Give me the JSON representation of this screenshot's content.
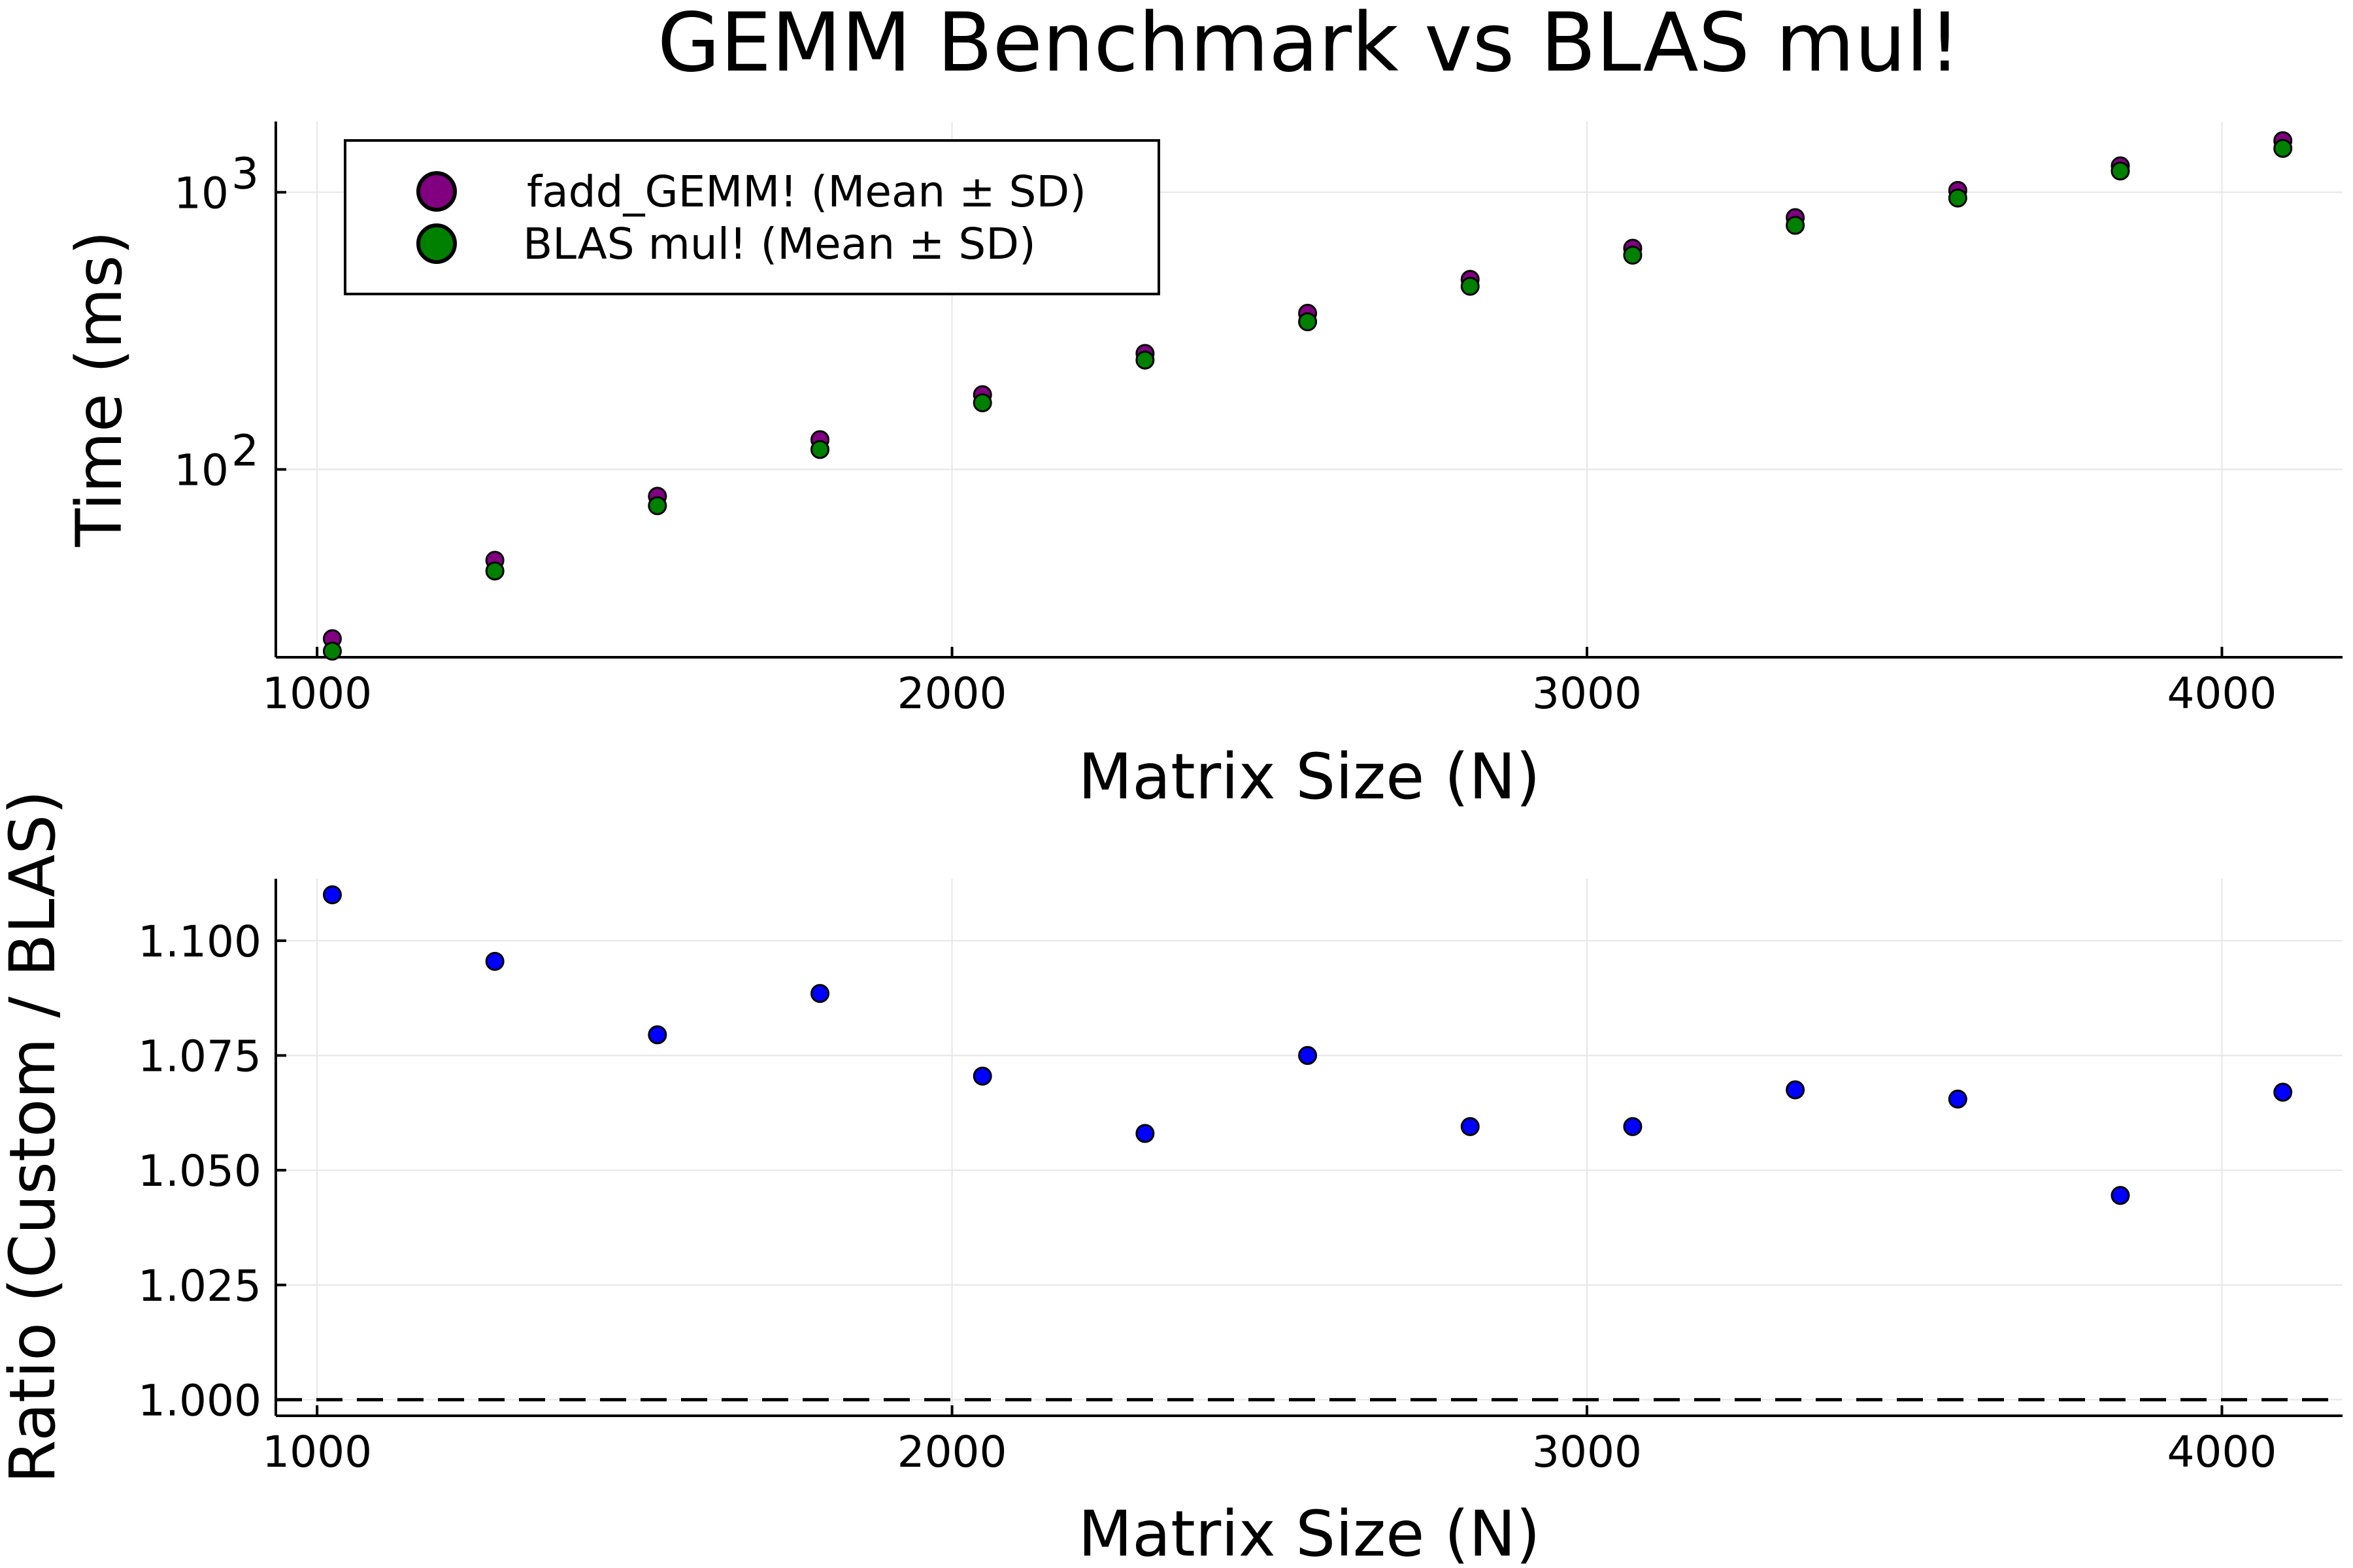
{
  "title": "GEMM Benchmark vs BLAS mul!",
  "colors": {
    "fadd": "#800080",
    "blas": "#008000",
    "ratio": "#0000ff"
  },
  "chart_data": [
    {
      "type": "scatter",
      "xlabel": "Matrix Size (N)",
      "ylabel": "Time (ms)",
      "yscale": "log10",
      "xlim": [
        935,
        4190
      ],
      "ylim": [
        21,
        1800
      ],
      "xticks": [
        1000,
        2000,
        3000,
        4000
      ],
      "xtick_labels": [
        "1000",
        "2000",
        "3000",
        "4000"
      ],
      "yticks": [
        100,
        1000
      ],
      "ytick_labels": [
        {
          "base": "10",
          "exp": "2"
        },
        {
          "base": "10",
          "exp": "3"
        }
      ],
      "grid": true,
      "legend_position": "top-left",
      "x": [
        1024,
        1280,
        1536,
        1792,
        2048,
        2304,
        2560,
        2816,
        3072,
        3328,
        3584,
        3840,
        4096
      ],
      "series": [
        {
          "name": "fadd_GEMM! (Mean ± SD)",
          "color": "#800080",
          "values": [
            24.5,
            47,
            80,
            128,
            186,
            262,
            366,
            485,
            628,
            810,
            1015,
            1245,
            1535
          ]
        },
        {
          "name": "BLAS mul! (Mean ± SD)",
          "color": "#008000",
          "values": [
            22.1,
            43,
            74,
            118,
            174,
            248,
            341,
            458,
            593,
            760,
            953,
            1193,
            1440
          ]
        }
      ]
    },
    {
      "type": "scatter",
      "xlabel": "Matrix Size (N)",
      "ylabel": "Ratio (Custom / BLAS)",
      "xlim": [
        935,
        4190
      ],
      "ylim": [
        0.9965,
        1.1135
      ],
      "xticks": [
        1000,
        2000,
        3000,
        4000
      ],
      "xtick_labels": [
        "1000",
        "2000",
        "3000",
        "4000"
      ],
      "yticks": [
        1.0,
        1.025,
        1.05,
        1.075,
        1.1
      ],
      "ytick_labels": [
        "1.000",
        "1.025",
        "1.050",
        "1.075",
        "1.100"
      ],
      "grid": true,
      "reference_line": {
        "y": 1.0,
        "style": "dashed"
      },
      "x": [
        1024,
        1280,
        1536,
        1792,
        2048,
        2304,
        2560,
        2816,
        3072,
        3328,
        3584,
        3840,
        4096
      ],
      "series": [
        {
          "color": "#0000ff",
          "values": [
            1.11,
            1.0955,
            1.0795,
            1.0885,
            1.0705,
            1.058,
            1.075,
            1.0595,
            1.0595,
            1.0675,
            1.0655,
            1.0445,
            1.067
          ]
        }
      ]
    }
  ]
}
